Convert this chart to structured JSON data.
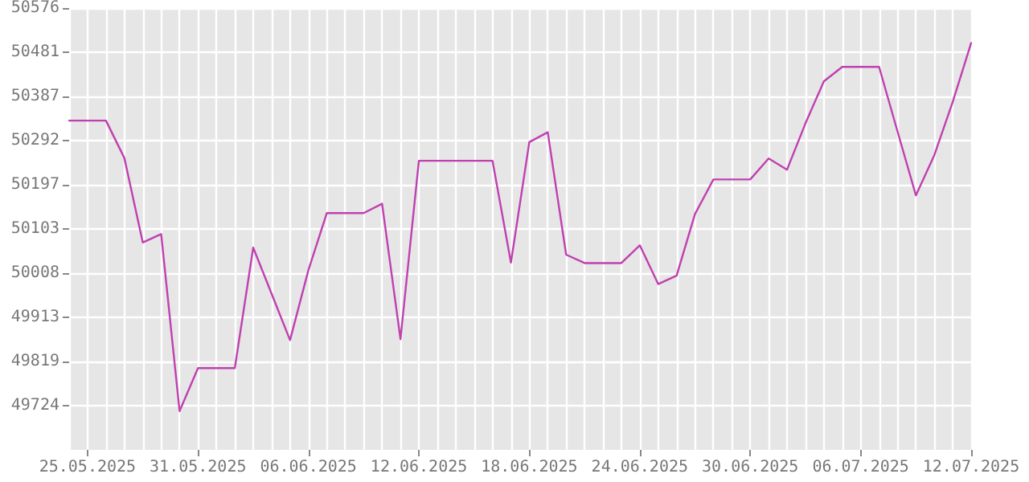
{
  "chart_data": {
    "type": "line",
    "categories": [
      null,
      "25.05.2025",
      null,
      null,
      null,
      null,
      null,
      "31.05.2025",
      null,
      null,
      null,
      null,
      null,
      "06.06.2025",
      null,
      null,
      null,
      null,
      null,
      "12.06.2025",
      null,
      null,
      null,
      null,
      null,
      "18.06.2025",
      null,
      null,
      null,
      null,
      null,
      "24.06.2025",
      null,
      null,
      null,
      null,
      null,
      "30.06.2025",
      null,
      null,
      null,
      null,
      null,
      "06.07.2025",
      null,
      null,
      null,
      null,
      null,
      "12.07.2025"
    ],
    "series": [
      {
        "color": "#c040b0",
        "values": [
          50335,
          50335,
          50335,
          50255,
          50074,
          50092,
          49713,
          49805,
          49805,
          49805,
          50063,
          49964,
          49865,
          50015,
          50137,
          50137,
          50137,
          50157,
          49867,
          50249,
          50249,
          50249,
          50249,
          50249,
          50031,
          50289,
          50310,
          50048,
          50030,
          50030,
          50030,
          50068,
          49985,
          50003,
          50135,
          50209,
          50209,
          50209,
          50254,
          50230,
          50329,
          50419,
          50450,
          50450,
          50450,
          50312,
          50175,
          50261,
          50375,
          50501
        ]
      }
    ],
    "ylim": [
      49630,
      50576
    ],
    "yticks": [
      49724,
      49819,
      49913,
      50008,
      50103,
      50197,
      50292,
      50387,
      50481,
      50576
    ],
    "grid": true,
    "marker": "none",
    "line_style": "solid"
  }
}
